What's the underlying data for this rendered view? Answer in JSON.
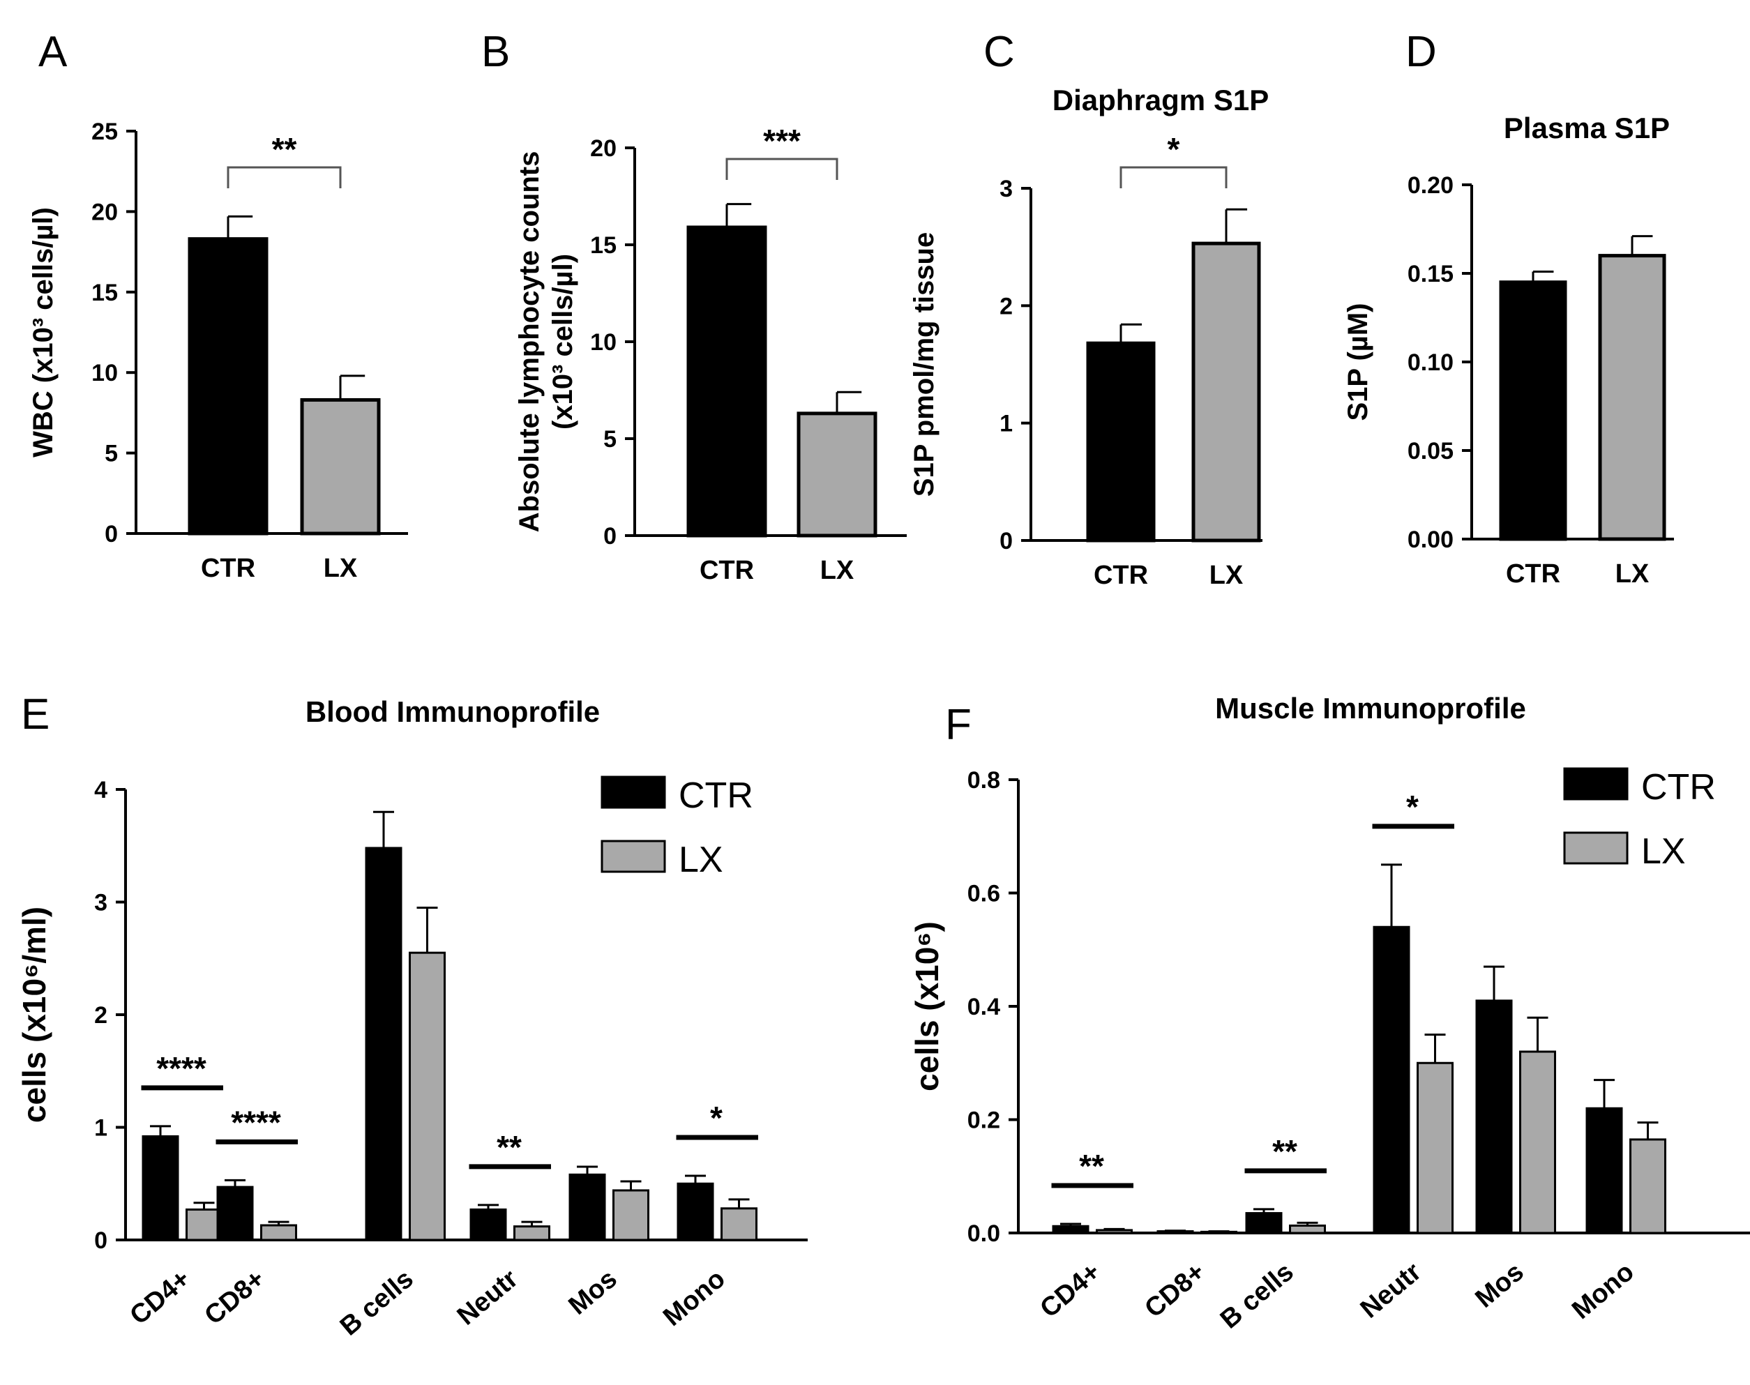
{
  "colors": {
    "ctr": "#000000",
    "lx": "#a9a9a9",
    "axis": "#000000"
  },
  "chart_data": [
    {
      "panel": "A",
      "type": "bar",
      "title": "",
      "categories": [
        "CTR",
        "LX"
      ],
      "values": [
        18.3,
        8.3
      ],
      "errors": [
        1.4,
        1.5
      ],
      "ylabel": "WBC (x10³ cells/µl)",
      "ylim": [
        0,
        25
      ],
      "yticks": [
        "0",
        "5",
        "10",
        "15",
        "20",
        "25"
      ],
      "significance": [
        {
          "from": 0,
          "to": 1,
          "label": "**"
        }
      ]
    },
    {
      "panel": "B",
      "type": "bar",
      "title": "",
      "categories": [
        "CTR",
        "LX"
      ],
      "values": [
        15.9,
        6.3
      ],
      "errors": [
        1.2,
        1.1
      ],
      "ylabel": "Absolute lymphocyte counts",
      "ylabel2": "(x10³ cells/µl)",
      "ylim": [
        0,
        20
      ],
      "yticks": [
        "0",
        "5",
        "10",
        "15",
        "20"
      ],
      "significance": [
        {
          "from": 0,
          "to": 1,
          "label": "***"
        }
      ]
    },
    {
      "panel": "C",
      "type": "bar",
      "title": "Diaphragm S1P",
      "categories": [
        "CTR",
        "LX"
      ],
      "values": [
        1.68,
        2.53
      ],
      "errors": [
        0.16,
        0.29
      ],
      "ylabel": "S1P pmol/mg tissue",
      "ylim": [
        0,
        3
      ],
      "yticks": [
        "0",
        "1",
        "2",
        "3"
      ],
      "significance": [
        {
          "from": 0,
          "to": 1,
          "label": "*"
        }
      ]
    },
    {
      "panel": "D",
      "type": "bar",
      "title": "Plasma S1P",
      "categories": [
        "CTR",
        "LX"
      ],
      "values": [
        0.145,
        0.16
      ],
      "errors": [
        0.006,
        0.011
      ],
      "ylabel": "S1P (µM)",
      "ylim": [
        0,
        0.2
      ],
      "yticks": [
        "0.00",
        "0.05",
        "0.10",
        "0.15",
        "0.20"
      ],
      "significance": []
    },
    {
      "panel": "E",
      "type": "bar",
      "title": "Blood Immunoprofile",
      "categories": [
        "CD4+",
        "CD8+",
        "B cells",
        "Neutr",
        "Mos",
        "Mono"
      ],
      "series": [
        {
          "name": "CTR",
          "values": [
            0.92,
            0.47,
            3.48,
            0.27,
            0.58,
            0.5
          ],
          "errors": [
            0.09,
            0.06,
            0.32,
            0.04,
            0.07,
            0.07
          ]
        },
        {
          "name": "LX",
          "values": [
            0.27,
            0.13,
            2.55,
            0.12,
            0.44,
            0.28
          ],
          "errors": [
            0.06,
            0.03,
            0.4,
            0.04,
            0.08,
            0.08
          ]
        }
      ],
      "ylabel": "cells (x10⁶/ml)",
      "ylim": [
        0,
        4
      ],
      "yticks": [
        "0",
        "1",
        "2",
        "3",
        "4"
      ],
      "significance": [
        {
          "category": 0,
          "label": "****"
        },
        {
          "category": 1,
          "label": "****"
        },
        {
          "category": 3,
          "label": "**"
        },
        {
          "category": 5,
          "label": "*"
        }
      ]
    },
    {
      "panel": "F",
      "type": "bar",
      "title": "Muscle Immunoprofile",
      "categories": [
        "CD4+",
        "CD8+",
        "B cells",
        "Neutr",
        "Mos",
        "Mono"
      ],
      "series": [
        {
          "name": "CTR",
          "values": [
            0.012,
            0.003,
            0.035,
            0.54,
            0.41,
            0.22
          ],
          "errors": [
            0.004,
            0.001,
            0.007,
            0.11,
            0.06,
            0.05
          ]
        },
        {
          "name": "LX",
          "values": [
            0.005,
            0.002,
            0.013,
            0.3,
            0.32,
            0.165
          ],
          "errors": [
            0.002,
            0.001,
            0.005,
            0.05,
            0.06,
            0.03
          ]
        }
      ],
      "ylabel": "cells (x10⁶)",
      "ylim": [
        0,
        0.8
      ],
      "yticks": [
        "0.0",
        "0.2",
        "0.4",
        "0.6",
        "0.8"
      ],
      "significance": [
        {
          "category": 0,
          "label": "**"
        },
        {
          "category": 2,
          "label": "**"
        },
        {
          "category": 3,
          "label": "*"
        }
      ]
    }
  ]
}
